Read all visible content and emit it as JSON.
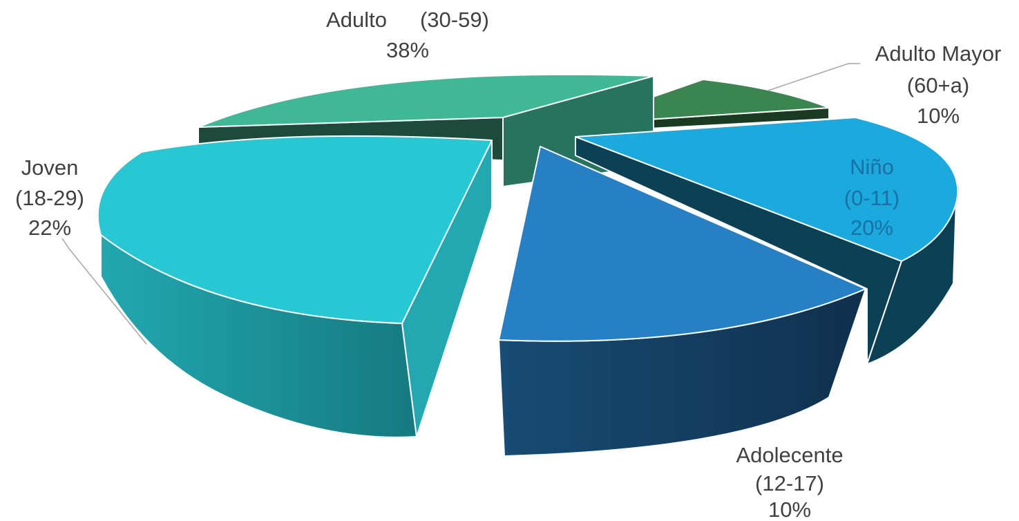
{
  "chart_data": {
    "type": "pie",
    "title": "",
    "slices": [
      {
        "name": "Niño (0-11)",
        "line1": "Niño",
        "line2": "(0-11)",
        "value": 20,
        "pct_label": "20%",
        "top_color": "#1ba9de",
        "side_color": "#0b4055"
      },
      {
        "name": "Adolecente (12-17)",
        "line1": "Adolecente",
        "line2": "(12-17)",
        "value": 10,
        "pct_label": "10%",
        "top_color": "#2780c4",
        "side_color": "#143c5e"
      },
      {
        "name": "Joven (18-29)",
        "line1": "Joven",
        "line2": "(18-29)",
        "value": 22,
        "pct_label": "22%",
        "top_color": "#27c8d3",
        "side_color": "#1b8f95"
      },
      {
        "name": "Adulto (30-59)",
        "line1": "Adulto",
        "line2": "(30-59)",
        "value": 38,
        "pct_label": "38%",
        "top_color": "#40b795",
        "side_color": "#1e4a3c"
      },
      {
        "name": "Adulto Mayor (60+a)",
        "line1": "Adulto Mayor",
        "line2": "(60+a)",
        "value": 10,
        "pct_label": "10%",
        "top_color": "#3b8551",
        "side_color": "#1a3a22"
      }
    ]
  }
}
